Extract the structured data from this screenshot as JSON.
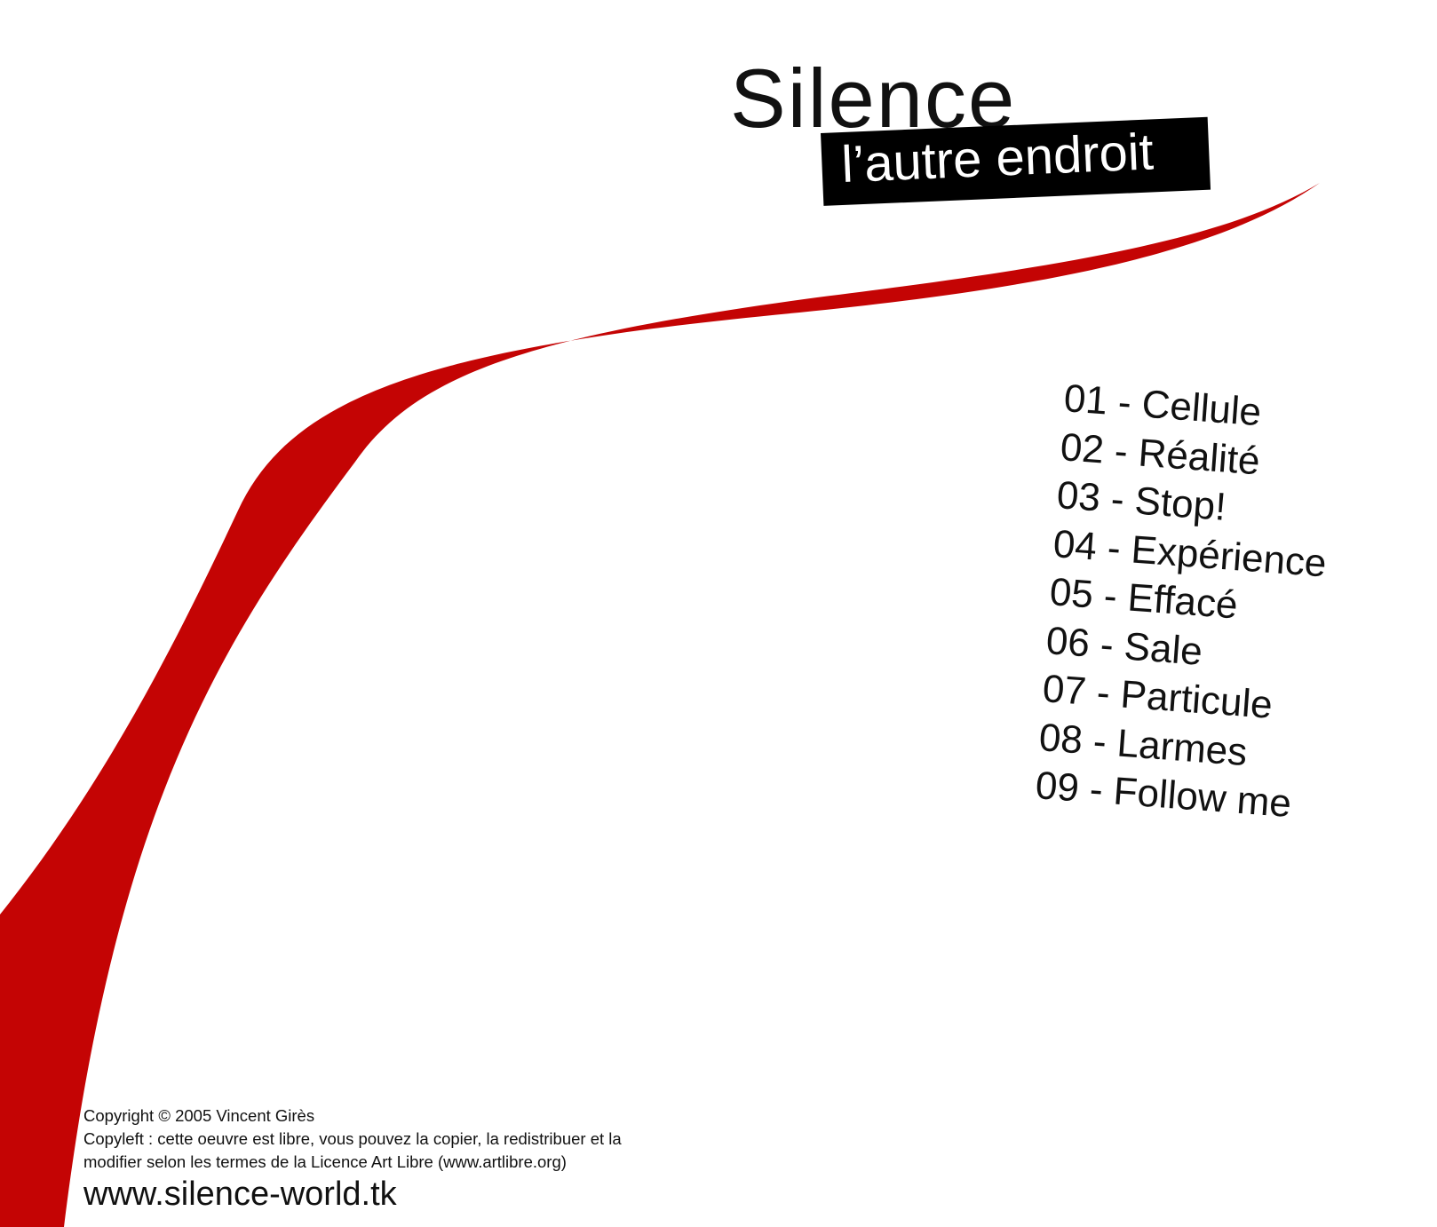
{
  "album": {
    "title": "Silence",
    "subtitle": "l’autre endroit"
  },
  "tracks": [
    "01 - Cellule",
    "02 - Réalité",
    "03 - Stop!",
    "04 - Expérience",
    "05 - Effacé",
    "06 - Sale",
    "07 - Particule",
    "08 - Larmes",
    "09 - Follow me"
  ],
  "legal": {
    "copyright": "Copyright © 2005 Vincent Girès",
    "copyleft_line1": "Copyleft : cette oeuvre est libre, vous pouvez la copier, la redistribuer et la",
    "copyleft_line2": "modifier selon les termes de la Licence Art Libre (www.artlibre.org)"
  },
  "website": "www.silence-world.tk",
  "colors": {
    "accent": "#c40404",
    "background": "#ffffff",
    "text": "#111111",
    "label_box": "#000000"
  }
}
